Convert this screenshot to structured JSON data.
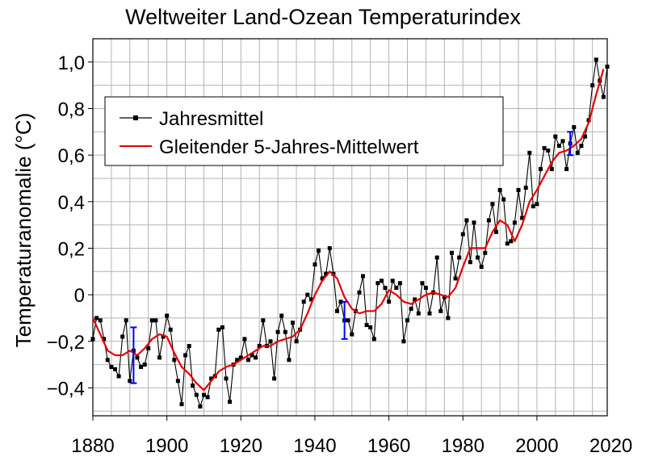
{
  "chart_data": {
    "type": "line",
    "title": "Weltweiter Land-Ozean Temperaturindex",
    "ylabel": "Temperaturanomalie (°C)",
    "xlabel": "",
    "xlim": [
      1880,
      2019
    ],
    "ylim": [
      -0.52,
      1.1
    ],
    "x_ticks": [
      1880,
      1900,
      1920,
      1940,
      1960,
      1980,
      2000,
      2020
    ],
    "x_tick_labels": [
      "1880",
      "1900",
      "1920",
      "1940",
      "1960",
      "1980",
      "2000",
      "2020"
    ],
    "y_ticks": [
      -0.4,
      -0.2,
      0,
      0.2,
      0.4,
      0.6,
      0.8,
      1.0
    ],
    "y_tick_labels": [
      "−0,4",
      "−0,2",
      "0",
      "0,2",
      "0,4",
      "0,6",
      "0,8",
      "1,0"
    ],
    "grid": true,
    "legend_position": "top-left",
    "series": [
      {
        "name": "Jahresmittel",
        "color": "#000000",
        "marker": "square",
        "x": [
          1880,
          1881,
          1882,
          1883,
          1884,
          1885,
          1886,
          1887,
          1888,
          1889,
          1890,
          1891,
          1892,
          1893,
          1894,
          1895,
          1896,
          1897,
          1898,
          1899,
          1900,
          1901,
          1902,
          1903,
          1904,
          1905,
          1906,
          1907,
          1908,
          1909,
          1910,
          1911,
          1912,
          1913,
          1914,
          1915,
          1916,
          1917,
          1918,
          1919,
          1920,
          1921,
          1922,
          1923,
          1924,
          1925,
          1926,
          1927,
          1928,
          1929,
          1930,
          1931,
          1932,
          1933,
          1934,
          1935,
          1936,
          1937,
          1938,
          1939,
          1940,
          1941,
          1942,
          1943,
          1944,
          1945,
          1946,
          1947,
          1948,
          1949,
          1950,
          1951,
          1952,
          1953,
          1954,
          1955,
          1956,
          1957,
          1958,
          1959,
          1960,
          1961,
          1962,
          1963,
          1964,
          1965,
          1966,
          1967,
          1968,
          1969,
          1970,
          1971,
          1972,
          1973,
          1974,
          1975,
          1976,
          1977,
          1978,
          1979,
          1980,
          1981,
          1982,
          1983,
          1984,
          1985,
          1986,
          1987,
          1988,
          1989,
          1990,
          1991,
          1992,
          1993,
          1994,
          1995,
          1996,
          1997,
          1998,
          1999,
          2000,
          2001,
          2002,
          2003,
          2004,
          2005,
          2006,
          2007,
          2008,
          2009,
          2010,
          2011,
          2012,
          2013,
          2014,
          2015,
          2016,
          2017,
          2018,
          2019
        ],
        "values": [
          -0.19,
          -0.1,
          -0.11,
          -0.19,
          -0.28,
          -0.31,
          -0.32,
          -0.35,
          -0.18,
          -0.11,
          -0.37,
          -0.24,
          -0.27,
          -0.31,
          -0.3,
          -0.23,
          -0.11,
          -0.11,
          -0.27,
          -0.18,
          -0.09,
          -0.15,
          -0.28,
          -0.37,
          -0.47,
          -0.26,
          -0.22,
          -0.39,
          -0.43,
          -0.48,
          -0.43,
          -0.44,
          -0.36,
          -0.35,
          -0.15,
          -0.14,
          -0.36,
          -0.46,
          -0.3,
          -0.28,
          -0.27,
          -0.19,
          -0.28,
          -0.26,
          -0.27,
          -0.22,
          -0.11,
          -0.22,
          -0.2,
          -0.36,
          -0.16,
          -0.09,
          -0.16,
          -0.28,
          -0.12,
          -0.2,
          -0.15,
          -0.03,
          0.0,
          -0.02,
          0.13,
          0.19,
          0.07,
          0.09,
          0.2,
          0.09,
          -0.07,
          -0.03,
          -0.11,
          -0.11,
          -0.17,
          -0.07,
          0.01,
          0.08,
          -0.13,
          -0.14,
          -0.19,
          0.05,
          0.06,
          0.03,
          -0.03,
          0.06,
          0.03,
          0.05,
          -0.2,
          -0.11,
          -0.06,
          -0.02,
          -0.08,
          0.05,
          0.03,
          -0.08,
          0.01,
          0.16,
          -0.07,
          -0.01,
          -0.1,
          0.18,
          0.07,
          0.16,
          0.26,
          0.32,
          0.14,
          0.31,
          0.16,
          0.12,
          0.18,
          0.32,
          0.39,
          0.27,
          0.45,
          0.41,
          0.22,
          0.23,
          0.31,
          0.45,
          0.33,
          0.46,
          0.61,
          0.38,
          0.39,
          0.54,
          0.63,
          0.62,
          0.54,
          0.68,
          0.64,
          0.66,
          0.54,
          0.65,
          0.72,
          0.61,
          0.64,
          0.68,
          0.75,
          0.9,
          1.01,
          0.92,
          0.85,
          0.98
        ]
      },
      {
        "name": "Gleitender 5-Jahres-Mittelwert",
        "color": "#e60000",
        "x": [
          1880,
          1882,
          1884,
          1886,
          1888,
          1890,
          1892,
          1894,
          1896,
          1898,
          1900,
          1902,
          1904,
          1906,
          1908,
          1910,
          1912,
          1914,
          1916,
          1918,
          1920,
          1922,
          1924,
          1926,
          1928,
          1930,
          1932,
          1934,
          1936,
          1938,
          1940,
          1942,
          1944,
          1946,
          1948,
          1950,
          1952,
          1954,
          1956,
          1958,
          1960,
          1962,
          1964,
          1966,
          1968,
          1970,
          1972,
          1974,
          1976,
          1978,
          1980,
          1982,
          1984,
          1986,
          1988,
          1990,
          1992,
          1994,
          1996,
          1998,
          2000,
          2002,
          2004,
          2006,
          2008,
          2010,
          2012,
          2014,
          2016,
          2018
        ],
        "values": [
          -0.1,
          -0.17,
          -0.24,
          -0.26,
          -0.26,
          -0.24,
          -0.26,
          -0.23,
          -0.19,
          -0.17,
          -0.18,
          -0.25,
          -0.31,
          -0.34,
          -0.38,
          -0.41,
          -0.37,
          -0.33,
          -0.31,
          -0.3,
          -0.28,
          -0.26,
          -0.24,
          -0.22,
          -0.22,
          -0.2,
          -0.19,
          -0.18,
          -0.15,
          -0.08,
          0.0,
          0.06,
          0.1,
          0.07,
          -0.01,
          -0.06,
          -0.08,
          -0.07,
          -0.07,
          -0.04,
          0.02,
          0.0,
          -0.03,
          -0.04,
          -0.02,
          0.0,
          0.01,
          0.0,
          -0.01,
          0.03,
          0.12,
          0.2,
          0.2,
          0.2,
          0.27,
          0.32,
          0.3,
          0.23,
          0.3,
          0.4,
          0.45,
          0.51,
          0.57,
          0.61,
          0.62,
          0.64,
          0.67,
          0.74,
          0.86,
          0.97
        ]
      }
    ],
    "error_bars": [
      {
        "x": 1891,
        "low": -0.38,
        "high": -0.14
      },
      {
        "x": 1948,
        "low": -0.19,
        "high": -0.03
      },
      {
        "x": 2009,
        "low": 0.6,
        "high": 0.7
      }
    ],
    "error_bar_color": "#0000ff"
  }
}
